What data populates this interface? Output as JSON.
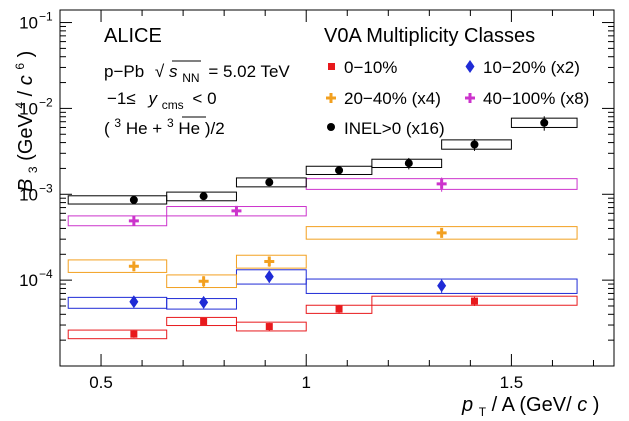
{
  "chart_data": {
    "type": "scatter",
    "title": "",
    "xlabel": "pT / A (GeV/c)",
    "ylabel": "B3 (GeV^4/c^6)",
    "xlim": [
      0.4,
      1.75
    ],
    "ylim": [
      1e-05,
      0.14
    ],
    "yscale": "log",
    "grid": false,
    "legend_position": "top-right",
    "xlabel_parts": {
      "p": "p",
      "sub": "T",
      "rest": " / A (GeV/",
      "c": "c",
      "close": ")"
    },
    "ylabel_parts": {
      "b": "B",
      "sub": "3",
      "open": " (GeV",
      "sup4": "4",
      "slash": "/",
      "c": "c",
      "sup6": "6",
      "close": ")"
    },
    "x_ticks": [
      {
        "value": 0.5,
        "label": "0.5"
      },
      {
        "value": 1.0,
        "label": "1"
      },
      {
        "value": 1.5,
        "label": "1.5"
      }
    ],
    "y_ticks": [
      {
        "value": 0.0001,
        "base": "10",
        "exp": "−4"
      },
      {
        "value": 0.001,
        "base": "10",
        "exp": "−3"
      },
      {
        "value": 0.01,
        "base": "10",
        "exp": "−2"
      },
      {
        "value": 0.1,
        "base": "10",
        "exp": "−1"
      }
    ],
    "annotations": {
      "experiment": "ALICE",
      "system": "p−Pb",
      "energy_sqrt": "s",
      "energy_sub": "NN",
      "energy_value": "= 5.02 TeV",
      "rapidity_pre": "−1≤",
      "rapidity_y": "y",
      "rapidity_sub": "cms",
      "rapidity_post": "< 0",
      "species_open": "(",
      "species_sup1": "3",
      "species_he": "He + ",
      "species_sup2": "3",
      "species_hebar": "He",
      "species_close": ")/2"
    },
    "legend_title": "V0A Multiplicity Classes",
    "series": [
      {
        "name": "0−10%",
        "color": "#e8191c",
        "marker": "square",
        "points": [
          {
            "x": 0.58,
            "y": 2.35e-05,
            "yerr": 2.2e-06,
            "bin": [
              0.42,
              0.66
            ],
            "sys": [
              2.08e-05,
              2.62e-05
            ]
          },
          {
            "x": 0.75,
            "y": 3.3e-05,
            "yerr": 2.5e-06,
            "bin": [
              0.66,
              0.83
            ],
            "sys": [
              2.96e-05,
              3.68e-05
            ]
          },
          {
            "x": 0.91,
            "y": 2.88e-05,
            "yerr": 3e-06,
            "bin": [
              0.83,
              1.0
            ],
            "sys": [
              2.56e-05,
              3.24e-05
            ]
          },
          {
            "x": 1.08,
            "y": 4.6e-05,
            "yerr": 5.5e-06,
            "bin": [
              1.0,
              1.16
            ],
            "sys": [
              4.1e-05,
              5.1e-05
            ]
          },
          {
            "x": 1.41,
            "y": 5.7e-05,
            "yerr": 7e-06,
            "bin": [
              1.16,
              1.66
            ],
            "sys": [
              5.1e-05,
              6.5e-05
            ]
          }
        ]
      },
      {
        "name": "10−20% (x2)",
        "color": "#1f2bd6",
        "marker": "diamond",
        "points": [
          {
            "x": 0.58,
            "y": 5.6e-05,
            "yerr": 8e-06,
            "bin": [
              0.42,
              0.66
            ],
            "sys": [
              4.7e-05,
              6.3e-05
            ]
          },
          {
            "x": 0.75,
            "y": 5.5e-05,
            "yerr": 8e-06,
            "bin": [
              0.66,
              0.83
            ],
            "sys": [
              4.6e-05,
              6.1e-05
            ]
          },
          {
            "x": 0.91,
            "y": 0.00011,
            "yerr": 1.7e-05,
            "bin": [
              0.83,
              1.0
            ],
            "sys": [
              9e-05,
              0.000132
            ]
          },
          {
            "x": 1.33,
            "y": 8.6e-05,
            "yerr": 1.5e-05,
            "bin": [
              1.0,
              1.66
            ],
            "sys": [
              7e-05,
              0.000103
            ]
          }
        ]
      },
      {
        "name": "20−40% (x4)",
        "color": "#f2a020",
        "marker": "cross",
        "points": [
          {
            "x": 0.58,
            "y": 0.000145,
            "yerr": 1.8e-05,
            "bin": [
              0.42,
              0.66
            ],
            "sys": [
              0.000123,
              0.000172
            ]
          },
          {
            "x": 0.75,
            "y": 9.7e-05,
            "yerr": 1.4e-05,
            "bin": [
              0.66,
              0.83
            ],
            "sys": [
              8.2e-05,
              0.000115
            ]
          },
          {
            "x": 0.91,
            "y": 0.000165,
            "yerr": 2.2e-05,
            "bin": [
              0.83,
              1.0
            ],
            "sys": [
              0.000138,
              0.000195
            ]
          },
          {
            "x": 1.33,
            "y": 0.000355,
            "yerr": 4e-05,
            "bin": [
              1.0,
              1.66
            ],
            "sys": [
              0.0003,
              0.00042
            ]
          }
        ]
      },
      {
        "name": "40−100% (x8)",
        "color": "#cc33cc",
        "marker": "cross",
        "points": [
          {
            "x": 0.58,
            "y": 0.00049,
            "yerr": 6e-05,
            "bin": [
              0.42,
              0.66
            ],
            "sys": [
              0.00043,
              0.00056
            ]
          },
          {
            "x": 0.83,
            "y": 0.00064,
            "yerr": 8e-05,
            "bin": [
              0.66,
              1.0
            ],
            "sys": [
              0.00056,
              0.00072
            ]
          },
          {
            "x": 1.33,
            "y": 0.00132,
            "yerr": 0.00025,
            "bin": [
              1.0,
              1.66
            ],
            "sys": [
              0.00114,
              0.00152
            ]
          }
        ]
      },
      {
        "name": "INEL>0 (x16)",
        "color": "#000000",
        "marker": "circle",
        "points": [
          {
            "x": 0.58,
            "y": 0.00086,
            "yerr": 6e-05,
            "bin": [
              0.42,
              0.66
            ],
            "sys": [
              0.00077,
              0.00096
            ]
          },
          {
            "x": 0.75,
            "y": 0.00095,
            "yerr": 6e-05,
            "bin": [
              0.66,
              0.83
            ],
            "sys": [
              0.00084,
              0.00106
            ]
          },
          {
            "x": 0.91,
            "y": 0.00138,
            "yerr": 9e-05,
            "bin": [
              0.83,
              1.0
            ],
            "sys": [
              0.00122,
              0.00155
            ]
          },
          {
            "x": 1.08,
            "y": 0.0019,
            "yerr": 0.0002,
            "bin": [
              1.0,
              1.16
            ],
            "sys": [
              0.0017,
              0.00212
            ]
          },
          {
            "x": 1.25,
            "y": 0.0023,
            "yerr": 0.00035,
            "bin": [
              1.16,
              1.33
            ],
            "sys": [
              0.00205,
              0.00256
            ]
          },
          {
            "x": 1.41,
            "y": 0.0038,
            "yerr": 0.0006,
            "bin": [
              1.33,
              1.5
            ],
            "sys": [
              0.00335,
              0.0043
            ]
          },
          {
            "x": 1.58,
            "y": 0.0068,
            "yerr": 0.0013,
            "bin": [
              1.5,
              1.66
            ],
            "sys": [
              0.006,
              0.0077
            ]
          }
        ]
      }
    ]
  }
}
